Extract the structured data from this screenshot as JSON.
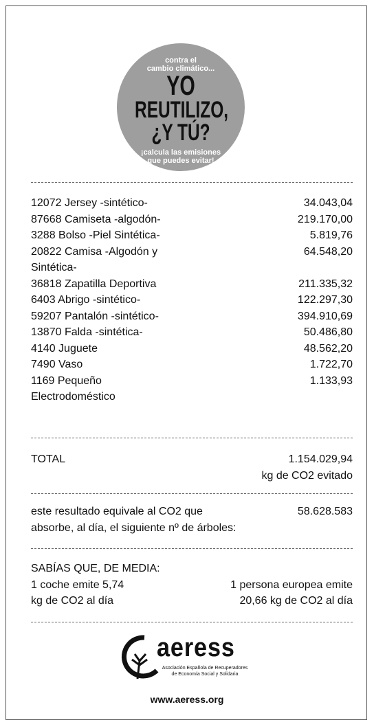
{
  "badge": {
    "top": [
      "contra el",
      "cambio climático..."
    ],
    "headline": [
      "YO",
      "REUTILIZO,",
      "¿Y TÚ?"
    ],
    "bottom": [
      "¡calcula las emisiones",
      "que puedes evitar!"
    ]
  },
  "items": [
    {
      "lines": [
        "12072 Jersey -sintético-"
      ],
      "value": "34.043,04"
    },
    {
      "lines": [
        "87668 Camiseta -algodón-"
      ],
      "value": "219.170,00"
    },
    {
      "lines": [
        "3288 Bolso -Piel Sintética-"
      ],
      "value": "5.819,76"
    },
    {
      "lines": [
        "20822 Camisa -Algodón y",
        "Sintética-"
      ],
      "value": "64.548,20"
    },
    {
      "lines": [
        "36818 Zapatilla Deportiva"
      ],
      "value": "211.335,32"
    },
    {
      "lines": [
        "6403 Abrigo -sintético-"
      ],
      "value": "122.297,30"
    },
    {
      "lines": [
        "59207 Pantalón -sintético-"
      ],
      "value": "394.910,69"
    },
    {
      "lines": [
        "13870 Falda -sintética-"
      ],
      "value": "50.486,80"
    },
    {
      "lines": [
        "4140 Juguete"
      ],
      "value": "48.562,20"
    },
    {
      "lines": [
        "7490 Vaso"
      ],
      "value": "1.722,70"
    },
    {
      "lines": [
        "1169 Pequeño",
        "Electrodoméstico"
      ],
      "value": "1.133,93"
    }
  ],
  "total": {
    "label": "TOTAL",
    "value": "1.154.029,94",
    "unit": "kg de CO2 evitado"
  },
  "trees": {
    "lines": [
      "este resultado equivale al CO2 que",
      "absorbe, al día, el siguiente nº de árboles:"
    ],
    "value": "58.628.583"
  },
  "facts": {
    "title": "SABÍAS QUE, DE MEDIA:",
    "left": [
      "1 coche emite 5,74",
      "kg de CO2 al día"
    ],
    "right": [
      "1 persona europea emite",
      "20,66 kg de CO2 al día"
    ]
  },
  "logo": {
    "name": "aeress",
    "sub": [
      "Asociación Española de Recuperadores",
      "de Economía Social y Solidaria"
    ],
    "url": "www.aeress.org"
  }
}
